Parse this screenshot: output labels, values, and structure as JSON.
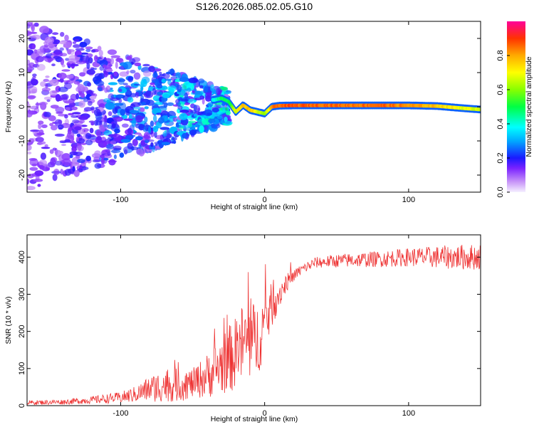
{
  "title": "S126.2026.085.02.05.G10",
  "chart_data": [
    {
      "type": "heatmap",
      "name": "spectrogram",
      "xlabel": "Height of straight line (km)",
      "ylabel": "Frequency (Hz)",
      "xlim": [
        -165,
        150
      ],
      "ylim": [
        -25,
        25
      ],
      "x_ticks": [
        -100,
        0,
        100
      ],
      "x_tick_labels": [
        "-100",
        "0",
        "100"
      ],
      "y_ticks": [
        -20,
        -10,
        0,
        10,
        20
      ],
      "y_tick_labels": [
        "-20",
        "-10",
        "0",
        "10",
        "20"
      ],
      "ridge": {
        "x": [
          -35,
          -30,
          -25,
          -20,
          -15,
          -10,
          -5,
          0,
          5,
          10,
          20,
          40,
          60,
          80,
          100,
          120,
          140,
          150
        ],
        "freq_hz": [
          2.0,
          2.5,
          1.5,
          -1.5,
          0.5,
          -1.0,
          -1.5,
          -2.0,
          0.0,
          0.3,
          0.4,
          0.4,
          0.4,
          0.4,
          0.4,
          0.2,
          -0.5,
          -0.8
        ],
        "amplitude": [
          0.4,
          0.5,
          0.5,
          0.7,
          0.8,
          0.8,
          0.7,
          0.6,
          0.85,
          0.9,
          0.9,
          0.9,
          0.88,
          0.9,
          0.85,
          0.8,
          0.7,
          0.7
        ]
      },
      "colorbar": {
        "label": "Normalized spectral amplitude",
        "range": [
          0,
          1
        ],
        "ticks": [
          0.0,
          0.2,
          0.4,
          0.6,
          0.8
        ],
        "tick_labels": [
          "0.0",
          "0.2",
          "0.4",
          "0.6",
          "0.8"
        ]
      }
    },
    {
      "type": "line",
      "name": "snr",
      "xlabel": "Height of straight line (km)",
      "ylabel": "SNR (10 * v/v)",
      "xlim": [
        -165,
        150
      ],
      "ylim": [
        0,
        460
      ],
      "x_ticks": [
        -100,
        0,
        100
      ],
      "x_tick_labels": [
        "-100",
        "0",
        "100"
      ],
      "y_ticks": [
        0,
        100,
        200,
        300,
        400
      ],
      "y_tick_labels": [
        "0",
        "100",
        "200",
        "300",
        "400"
      ],
      "color": "#ee3333",
      "envelope": {
        "x": [
          -165,
          -140,
          -120,
          -100,
          -90,
          -80,
          -70,
          -60,
          -50,
          -40,
          -30,
          -20,
          -15,
          -10,
          -5,
          0,
          5,
          10,
          15,
          20,
          25,
          30,
          35,
          50,
          80,
          100,
          120,
          140,
          150
        ],
        "mean": [
          8,
          10,
          15,
          22,
          30,
          45,
          55,
          55,
          60,
          80,
          110,
          140,
          170,
          170,
          180,
          220,
          270,
          300,
          330,
          350,
          365,
          375,
          385,
          390,
          395,
          400,
          400,
          400,
          400
        ],
        "spread": [
          6,
          7,
          10,
          15,
          22,
          35,
          45,
          45,
          40,
          60,
          80,
          100,
          110,
          110,
          100,
          90,
          60,
          40,
          25,
          15,
          15,
          15,
          15,
          18,
          22,
          25,
          30,
          35,
          35
        ]
      }
    }
  ]
}
